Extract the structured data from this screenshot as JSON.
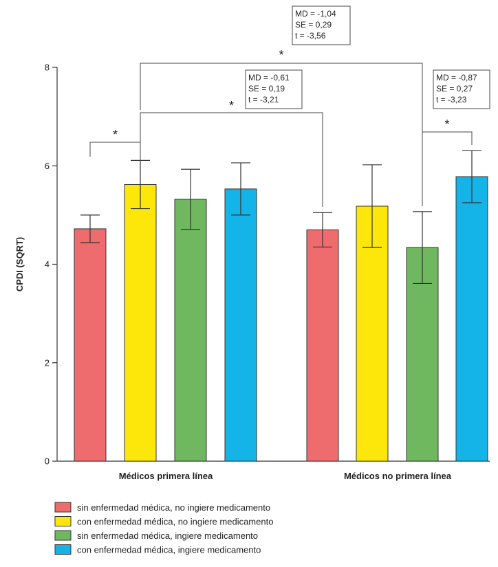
{
  "chart_data": {
    "type": "bar",
    "ylabel": "CPDI (SQRT)",
    "ylim": [
      0,
      8
    ],
    "yticks": [
      0,
      2,
      4,
      6,
      8
    ],
    "categories": [
      "Médicos primera línea",
      "Médicos no primera línea"
    ],
    "series": [
      {
        "name": "sin enfermedad médica, no ingiere medicamento",
        "color": "#ee6b6e",
        "values": [
          4.72,
          4.7
        ],
        "errors": [
          0.28,
          0.35
        ]
      },
      {
        "name": "con enfermedad médica, no ingiere medicamento",
        "color": "#fde70a",
        "values": [
          5.62,
          5.18
        ],
        "errors": [
          0.49,
          0.84
        ]
      },
      {
        "name": "sin enfermedad médica, ingiere medicamento",
        "color": "#6fb860",
        "values": [
          5.32,
          4.34
        ],
        "errors": [
          0.61,
          0.73
        ]
      },
      {
        "name": "con enfermedad médica, ingiere medicamento",
        "color": "#14b4e8",
        "values": [
          5.53,
          5.78
        ],
        "errors": [
          0.53,
          0.53
        ]
      }
    ],
    "grid": false,
    "legend_position": "bottom-left",
    "annotations": {
      "significance_marker": "*",
      "brackets": [
        {
          "from": "Médicos primera línea / sin enfermedad médica, no ingiere medicamento",
          "to": "Médicos primera línea / con enfermedad médica, no ingiere medicamento",
          "label": "*"
        },
        {
          "from": "Médicos primera línea / con enfermedad médica, no ingiere medicamento",
          "to": "Médicos no primera línea / sin enfermedad médica, no ingiere medicamento",
          "label": "*",
          "stats": [
            "MD = -0,61",
            "SE = 0,19",
            "t = -3,21"
          ]
        },
        {
          "from": "Médicos primera línea / con enfermedad médica, no ingiere medicamento",
          "to": "Médicos no primera línea / sin enfermedad médica, ingiere medicamento",
          "label": "*",
          "stats": [
            "MD = -1,04",
            "SE = 0,29",
            "t = -3,56"
          ]
        },
        {
          "from": "Médicos no primera línea / sin enfermedad médica, ingiere medicamento",
          "to": "Médicos no primera línea / con enfermedad médica, ingiere medicamento",
          "label": "*",
          "stats": [
            "MD = -0,87",
            "SE = 0,27",
            "t = -3,23"
          ]
        }
      ]
    }
  }
}
